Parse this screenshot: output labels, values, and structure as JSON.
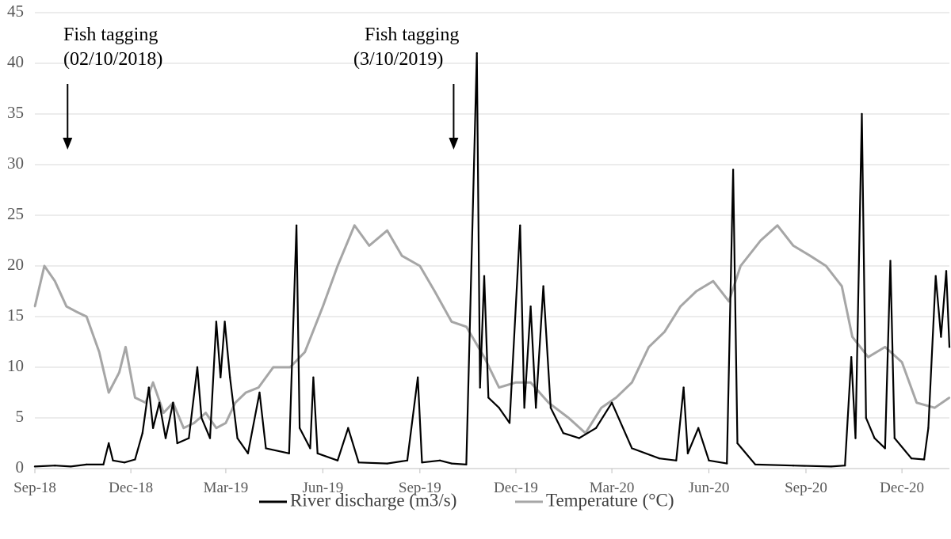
{
  "chart_data": {
    "type": "line",
    "ylim": [
      0,
      45
    ],
    "yticks": [
      "0",
      "5",
      "10",
      "15",
      "20",
      "25",
      "30",
      "35",
      "40",
      "45"
    ],
    "x_labels": [
      "Sep-18",
      "Dec-18",
      "Mar-19",
      "Jun-19",
      "Sep-19",
      "Dec-19",
      "Mar-20",
      "Jun-20",
      "Sep-20",
      "Dec-20"
    ],
    "x_range": [
      "2018-09-01",
      "2021-01-15"
    ],
    "grid": "horizontal",
    "legend_position": "bottom",
    "annotations": [
      {
        "line1": "Fish tagging",
        "line2": "(02/10/2018)",
        "date": "2018-10-02"
      },
      {
        "line1": "Fish tagging",
        "line2": "(3/10/2019)",
        "date": "2019-10-03"
      }
    ],
    "series": [
      {
        "name": "River discharge (m3/s)",
        "color": "#000000",
        "points": [
          [
            "2018-09-01",
            0.2
          ],
          [
            "2018-09-20",
            0.3
          ],
          [
            "2018-10-05",
            0.2
          ],
          [
            "2018-10-20",
            0.4
          ],
          [
            "2018-11-05",
            0.4
          ],
          [
            "2018-11-10",
            2.5
          ],
          [
            "2018-11-14",
            0.8
          ],
          [
            "2018-11-25",
            0.6
          ],
          [
            "2018-12-05",
            0.9
          ],
          [
            "2018-12-12",
            3.5
          ],
          [
            "2018-12-18",
            8.0
          ],
          [
            "2018-12-22",
            4.0
          ],
          [
            "2018-12-28",
            6.5
          ],
          [
            "2019-01-03",
            3.0
          ],
          [
            "2019-01-10",
            6.5
          ],
          [
            "2019-01-14",
            2.5
          ],
          [
            "2019-01-25",
            3.0
          ],
          [
            "2019-02-02",
            10.0
          ],
          [
            "2019-02-06",
            5.0
          ],
          [
            "2019-02-14",
            3.0
          ],
          [
            "2019-02-20",
            14.5
          ],
          [
            "2019-02-24",
            9.0
          ],
          [
            "2019-02-28",
            14.5
          ],
          [
            "2019-03-05",
            9.0
          ],
          [
            "2019-03-12",
            3.0
          ],
          [
            "2019-03-22",
            1.5
          ],
          [
            "2019-04-02",
            7.5
          ],
          [
            "2019-04-08",
            2.0
          ],
          [
            "2019-04-30",
            1.5
          ],
          [
            "2019-05-07",
            24.0
          ],
          [
            "2019-05-10",
            4.0
          ],
          [
            "2019-05-20",
            2.0
          ],
          [
            "2019-05-23",
            9.0
          ],
          [
            "2019-05-27",
            1.5
          ],
          [
            "2019-06-15",
            0.8
          ],
          [
            "2019-06-25",
            4.0
          ],
          [
            "2019-07-05",
            0.6
          ],
          [
            "2019-08-01",
            0.5
          ],
          [
            "2019-08-20",
            0.8
          ],
          [
            "2019-08-30",
            9.0
          ],
          [
            "2019-09-03",
            0.6
          ],
          [
            "2019-09-20",
            0.8
          ],
          [
            "2019-10-01",
            0.5
          ],
          [
            "2019-10-15",
            0.4
          ],
          [
            "2019-10-25",
            41.0
          ],
          [
            "2019-10-28",
            8.0
          ],
          [
            "2019-11-01",
            19.0
          ],
          [
            "2019-11-05",
            7.0
          ],
          [
            "2019-11-15",
            6.0
          ],
          [
            "2019-11-25",
            4.5
          ],
          [
            "2019-12-05",
            24.0
          ],
          [
            "2019-12-09",
            6.0
          ],
          [
            "2019-12-15",
            16.0
          ],
          [
            "2019-12-20",
            6.0
          ],
          [
            "2019-12-27",
            18.0
          ],
          [
            "2020-01-03",
            6.0
          ],
          [
            "2020-01-15",
            3.5
          ],
          [
            "2020-01-30",
            3.0
          ],
          [
            "2020-02-15",
            4.0
          ],
          [
            "2020-03-01",
            6.5
          ],
          [
            "2020-03-20",
            2.0
          ],
          [
            "2020-04-15",
            1.0
          ],
          [
            "2020-05-01",
            0.8
          ],
          [
            "2020-05-08",
            8.0
          ],
          [
            "2020-05-12",
            1.5
          ],
          [
            "2020-05-22",
            4.0
          ],
          [
            "2020-06-01",
            0.8
          ],
          [
            "2020-06-18",
            0.5
          ],
          [
            "2020-06-24",
            29.5
          ],
          [
            "2020-06-28",
            2.5
          ],
          [
            "2020-07-15",
            0.4
          ],
          [
            "2020-08-20",
            0.3
          ],
          [
            "2020-09-25",
            0.2
          ],
          [
            "2020-10-08",
            0.3
          ],
          [
            "2020-10-14",
            11.0
          ],
          [
            "2020-10-18",
            3.0
          ],
          [
            "2020-10-24",
            35.0
          ],
          [
            "2020-10-28",
            5.0
          ],
          [
            "2020-11-05",
            3.0
          ],
          [
            "2020-11-15",
            2.0
          ],
          [
            "2020-11-20",
            20.5
          ],
          [
            "2020-11-24",
            3.0
          ],
          [
            "2020-12-10",
            1.0
          ],
          [
            "2020-12-22",
            0.9
          ],
          [
            "2020-12-26",
            4.0
          ],
          [
            "2021-01-02",
            19.0
          ],
          [
            "2021-01-07",
            13.0
          ],
          [
            "2021-01-12",
            19.5
          ],
          [
            "2021-01-15",
            12.0
          ]
        ]
      },
      {
        "name": "Temperature (°C)",
        "color": "#a6a6a6",
        "points": [
          [
            "2018-09-01",
            16.0
          ],
          [
            "2018-09-10",
            20.0
          ],
          [
            "2018-09-20",
            18.5
          ],
          [
            "2018-10-01",
            16.0
          ],
          [
            "2018-10-10",
            15.5
          ],
          [
            "2018-10-20",
            15.0
          ],
          [
            "2018-11-01",
            11.5
          ],
          [
            "2018-11-10",
            7.5
          ],
          [
            "2018-11-20",
            9.5
          ],
          [
            "2018-11-26",
            12.0
          ],
          [
            "2018-12-05",
            7.0
          ],
          [
            "2018-12-15",
            6.5
          ],
          [
            "2018-12-22",
            8.5
          ],
          [
            "2019-01-01",
            5.5
          ],
          [
            "2019-01-10",
            6.5
          ],
          [
            "2019-01-20",
            4.0
          ],
          [
            "2019-01-30",
            4.5
          ],
          [
            "2019-02-10",
            5.5
          ],
          [
            "2019-02-20",
            4.0
          ],
          [
            "2019-03-01",
            4.5
          ],
          [
            "2019-03-10",
            6.5
          ],
          [
            "2019-03-20",
            7.5
          ],
          [
            "2019-04-01",
            8.0
          ],
          [
            "2019-04-15",
            10.0
          ],
          [
            "2019-05-01",
            10.0
          ],
          [
            "2019-05-15",
            11.5
          ],
          [
            "2019-06-01",
            16.0
          ],
          [
            "2019-06-15",
            20.0
          ],
          [
            "2019-07-01",
            24.0
          ],
          [
            "2019-07-15",
            22.0
          ],
          [
            "2019-08-01",
            23.5
          ],
          [
            "2019-08-15",
            21.0
          ],
          [
            "2019-09-01",
            20.0
          ],
          [
            "2019-09-15",
            17.5
          ],
          [
            "2019-10-01",
            14.5
          ],
          [
            "2019-10-15",
            14.0
          ],
          [
            "2019-11-01",
            11.0
          ],
          [
            "2019-11-15",
            8.0
          ],
          [
            "2019-12-01",
            8.5
          ],
          [
            "2019-12-15",
            8.5
          ],
          [
            "2020-01-01",
            6.5
          ],
          [
            "2020-01-20",
            5.0
          ],
          [
            "2020-02-05",
            3.5
          ],
          [
            "2020-02-20",
            6.0
          ],
          [
            "2020-03-05",
            7.0
          ],
          [
            "2020-03-20",
            8.5
          ],
          [
            "2020-04-05",
            12.0
          ],
          [
            "2020-04-20",
            13.5
          ],
          [
            "2020-05-05",
            16.0
          ],
          [
            "2020-05-20",
            17.5
          ],
          [
            "2020-06-05",
            18.5
          ],
          [
            "2020-06-20",
            16.5
          ],
          [
            "2020-07-01",
            20.0
          ],
          [
            "2020-07-20",
            22.5
          ],
          [
            "2020-08-05",
            24.0
          ],
          [
            "2020-08-20",
            22.0
          ],
          [
            "2020-09-05",
            21.0
          ],
          [
            "2020-09-20",
            20.0
          ],
          [
            "2020-10-05",
            18.0
          ],
          [
            "2020-10-15",
            13.0
          ],
          [
            "2020-10-30",
            11.0
          ],
          [
            "2020-11-15",
            12.0
          ],
          [
            "2020-12-01",
            10.5
          ],
          [
            "2020-12-15",
            6.5
          ],
          [
            "2021-01-01",
            6.0
          ],
          [
            "2021-01-15",
            7.0
          ]
        ]
      }
    ]
  }
}
